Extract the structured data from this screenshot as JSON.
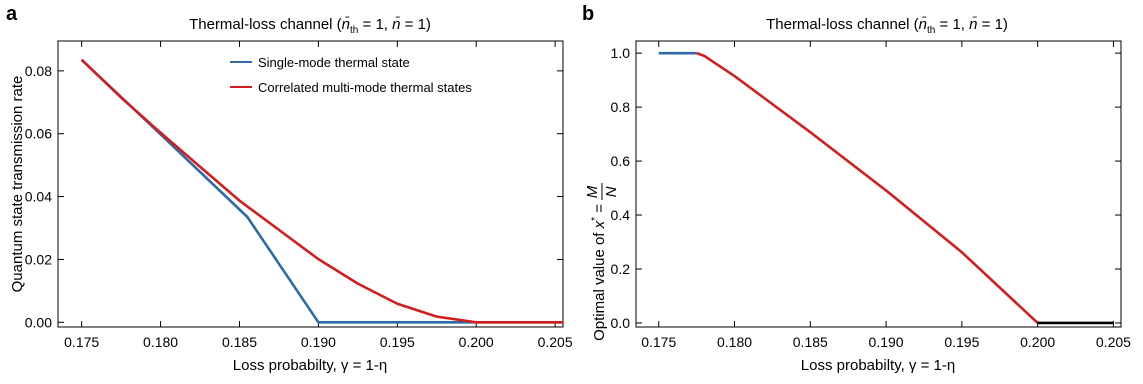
{
  "chart_data": [
    {
      "panel": "a",
      "type": "line",
      "title": "Thermal-loss channel (n̄th = 1, n̄ = 1)",
      "title_parts": [
        "Thermal-loss channel (",
        "n̄",
        "th",
        " = 1, ",
        "n̄",
        " = 1)"
      ],
      "xlabel": "Loss probabilty, γ = 1-η",
      "ylabel": "Quantum state transmission rate",
      "xlim": [
        0.1735,
        0.2055
      ],
      "ylim": [
        -0.0015,
        0.0895
      ],
      "xticks": [
        "0.175",
        "0.180",
        "0.185",
        "0.190",
        "0.195",
        "0.200",
        "0.205"
      ],
      "yticks": [
        "0.00",
        "0.02",
        "0.04",
        "0.06",
        "0.08"
      ],
      "legend_position": "top-right",
      "series": [
        {
          "name": "Single-mode thermal state",
          "color": "#2f6aa8",
          "x": [
            0.175,
            0.18,
            0.1855,
            0.19,
            0.2055
          ],
          "y": [
            0.0835,
            0.0598,
            0.0335,
            0.0,
            0.0
          ]
        },
        {
          "name": "Correlated multi-mode thermal states",
          "color": "#d21e1e",
          "x": [
            0.175,
            0.1775,
            0.18,
            0.1825,
            0.185,
            0.1875,
            0.19,
            0.1925,
            0.195,
            0.1975,
            0.2,
            0.2055
          ],
          "y": [
            0.0835,
            0.0715,
            0.0603,
            0.0495,
            0.0387,
            0.0294,
            0.0201,
            0.0123,
            0.0059,
            0.0018,
            0.0,
            0.0
          ]
        }
      ]
    },
    {
      "panel": "b",
      "type": "line",
      "title": "Thermal-loss channel (n̄th = 1, n̄ = 1)",
      "title_parts": [
        "Thermal-loss channel (",
        "n̄",
        "th",
        " = 1, ",
        "n̄",
        " = 1)"
      ],
      "xlabel": "Loss probabilty, γ = 1-η",
      "ylabel": "Optimal value of x* = M/N",
      "ylabel_parts": [
        "Optimal value of ",
        "x",
        "*",
        " = ",
        "M",
        "N"
      ],
      "xlim": [
        0.1735,
        0.2055
      ],
      "ylim": [
        -0.015,
        1.045
      ],
      "xticks": [
        "0.175",
        "0.180",
        "0.185",
        "0.190",
        "0.195",
        "0.200",
        "0.205"
      ],
      "yticks": [
        "0.0",
        "0.2",
        "0.4",
        "0.6",
        "0.8",
        "1.0"
      ],
      "series": [
        {
          "color": "#2f6aa8",
          "x": [
            0.175,
            0.1775
          ],
          "y": [
            1.0,
            1.0
          ]
        },
        {
          "color": "#d21e1e",
          "x": [
            0.1775,
            0.178,
            0.18,
            0.185,
            0.19,
            0.195,
            0.2
          ],
          "y": [
            1.0,
            0.99,
            0.915,
            0.707,
            0.491,
            0.262,
            0.0
          ]
        },
        {
          "color": "#000000",
          "x": [
            0.2,
            0.205
          ],
          "y": [
            0.0,
            0.0
          ]
        }
      ]
    }
  ],
  "panel_labels": [
    "a",
    "b"
  ]
}
